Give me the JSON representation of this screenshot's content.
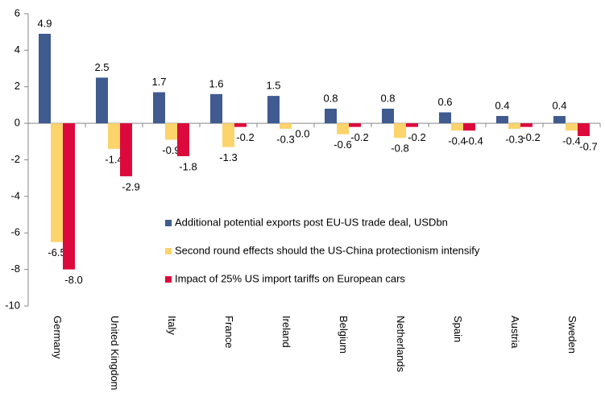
{
  "chart_data": {
    "type": "bar",
    "categories": [
      "Germany",
      "United Kingdom",
      "Italy",
      "France",
      "Ireland",
      "Belgium",
      "Netherlands",
      "Spain",
      "Austria",
      "Sweden"
    ],
    "series": [
      {
        "name": "Additional potential exports post EU-US trade deal, USDbn",
        "color": "#3f5b8f",
        "values": [
          4.9,
          2.5,
          1.7,
          1.6,
          1.5,
          0.8,
          0.8,
          0.6,
          0.4,
          0.4
        ],
        "value_labels": [
          "4.9",
          "2.5",
          "1.7",
          "1.6",
          "1.5",
          "0.8",
          "0.8",
          "0.6",
          "0.4",
          "0.4"
        ]
      },
      {
        "name": "Second round effects should the US-China protectionism intensify",
        "color": "#fcd46c",
        "values": [
          -6.5,
          -1.4,
          -0.9,
          -1.3,
          -0.3,
          -0.6,
          -0.8,
          -0.4,
          -0.3,
          -0.4
        ],
        "value_labels": [
          "-6.5",
          "-1.4",
          "-0.9",
          "-1.3",
          "-0.3",
          "-0.6",
          "-0.8",
          "-0.4",
          "-0.3",
          "-0.4"
        ]
      },
      {
        "name": "Impact of 25% US import tariffs on European cars",
        "color": "#dc0a3c",
        "values": [
          -8.0,
          -2.9,
          -1.8,
          -0.2,
          0.0,
          -0.2,
          -0.2,
          -0.4,
          -0.2,
          -0.7
        ],
        "value_labels": [
          "-8.0",
          "-2.9",
          "-1.8",
          "-0.2",
          "0.0",
          "-0.2",
          "-0.2",
          "-0.4",
          "-0.2",
          "-0.7"
        ]
      }
    ],
    "ylim": [
      -10,
      6
    ],
    "yticks": [
      6,
      4,
      2,
      0,
      -2,
      -4,
      -6,
      -8,
      -10
    ],
    "grid": false
  }
}
